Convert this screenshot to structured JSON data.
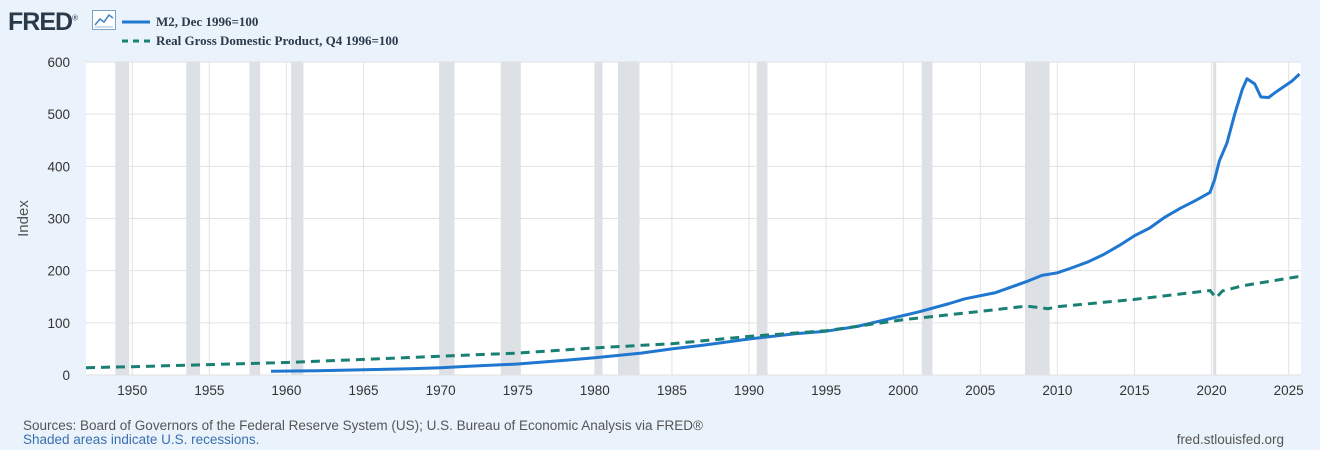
{
  "brand": {
    "logo_text": "FRED",
    "logo_mark": "®"
  },
  "colors": {
    "background": "#eaf3fb",
    "plot_bg": "#ffffff",
    "grid": "#e2e2e2",
    "recession": "#dde1e6",
    "m2": "#1f77d0",
    "gdp": "#1a8073"
  },
  "chart_data": {
    "type": "line",
    "title": "",
    "xlabel": "",
    "ylabel": "Index",
    "xlim": [
      1947,
      2025.8
    ],
    "ylim": [
      0,
      600
    ],
    "yticks": [
      0,
      100,
      200,
      300,
      400,
      500,
      600
    ],
    "xticks": [
      1950,
      1955,
      1960,
      1965,
      1970,
      1975,
      1980,
      1985,
      1990,
      1995,
      2000,
      2005,
      2010,
      2015,
      2020,
      2025
    ],
    "recessions": [
      [
        1948.9,
        1949.8
      ],
      [
        1953.5,
        1954.4
      ],
      [
        1957.6,
        1958.3
      ],
      [
        1960.3,
        1961.1
      ],
      [
        1969.9,
        1970.9
      ],
      [
        1973.9,
        1975.2
      ],
      [
        1980.0,
        1980.5
      ],
      [
        1981.5,
        1982.9
      ],
      [
        1990.5,
        1991.2
      ],
      [
        2001.2,
        2001.9
      ],
      [
        2007.9,
        2009.5
      ],
      [
        2020.1,
        2020.3
      ]
    ],
    "series": [
      {
        "name": "M2, Dec 1996=100",
        "style": "solid",
        "x": [
          1959,
          1962,
          1965,
          1968,
          1970,
          1972,
          1975,
          1978,
          1980,
          1983,
          1985,
          1987,
          1990,
          1993,
          1995,
          1997,
          1999,
          2001,
          2003,
          2004,
          2006,
          2008,
          2009,
          2010,
          2011,
          2012,
          2013,
          2014,
          2015,
          2016,
          2017,
          2018,
          2019,
          2019.9,
          2020.2,
          2020.5,
          2021,
          2021.5,
          2022,
          2022.3,
          2022.8,
          2023.2,
          2023.7,
          2024.2,
          2024.7,
          2025.2,
          2025.7
        ],
        "values": [
          7,
          8,
          10,
          12,
          14,
          17,
          21,
          28,
          33,
          42,
          50,
          57,
          69,
          79,
          84,
          93,
          107,
          121,
          137,
          146,
          158,
          179,
          191,
          196,
          206,
          217,
          231,
          248,
          267,
          282,
          303,
          320,
          335,
          350,
          375,
          410,
          445,
          500,
          548,
          568,
          558,
          533,
          532,
          543,
          553,
          563,
          577
        ]
      },
      {
        "name": "Real Gross Domestic Product, Q4 1996=100",
        "style": "dashed",
        "x": [
          1947,
          1950,
          1955,
          1960,
          1965,
          1970,
          1975,
          1980,
          1985,
          1990,
          1995,
          2000,
          2005,
          2008,
          2009.4,
          2010,
          2015,
          2019.9,
          2020.3,
          2020.7,
          2022,
          2025.7
        ],
        "values": [
          14,
          16,
          20,
          24,
          30,
          36,
          42,
          52,
          60,
          74,
          85,
          106,
          122,
          132,
          127,
          131,
          145,
          162,
          148,
          161,
          171,
          189
        ]
      }
    ]
  },
  "footer": {
    "sources": "Sources: Board of Governors of the Federal Reserve System (US); U.S. Bureau of Economic Analysis via FRED®",
    "shaded_note": "Shaded areas indicate U.S. recessions.",
    "url": "fred.stlouisfed.org"
  }
}
